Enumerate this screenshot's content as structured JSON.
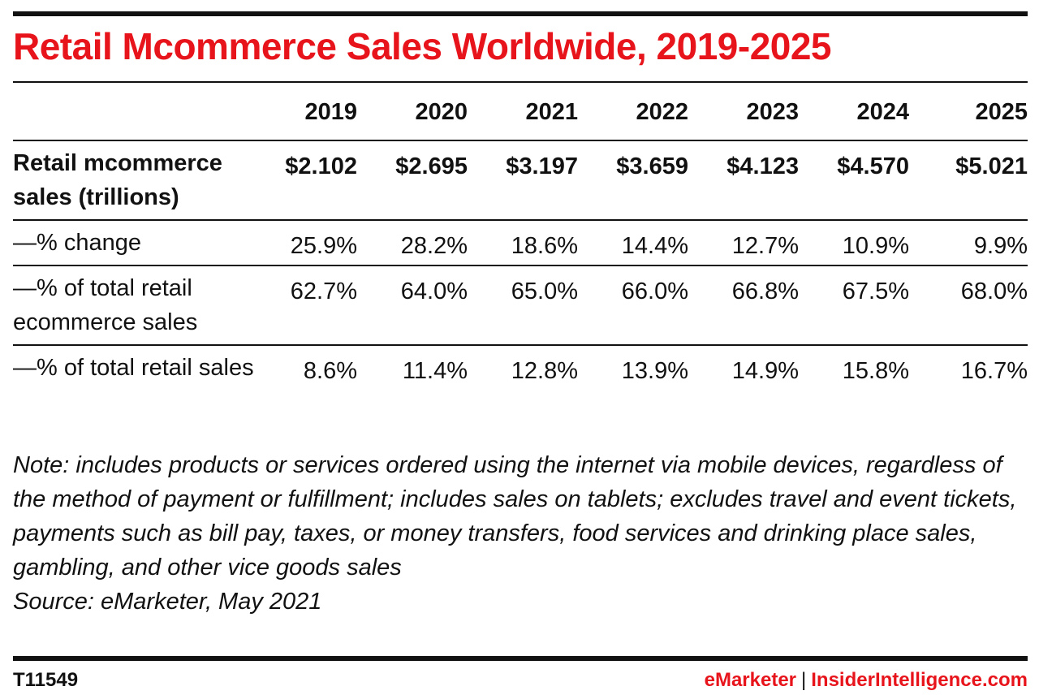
{
  "title": "Retail Mcommerce Sales Worldwide, 2019-2025",
  "chart_data": {
    "type": "table",
    "title": "Retail Mcommerce Sales Worldwide, 2019-2025",
    "columns": [
      "2019",
      "2020",
      "2021",
      "2022",
      "2023",
      "2024",
      "2025"
    ],
    "rows": [
      {
        "label": "Retail mcommerce sales (trillions)",
        "values": [
          "$2.102",
          "$2.695",
          "$3.197",
          "$3.659",
          "$4.123",
          "$4.570",
          "$5.021"
        ]
      },
      {
        "label": "—% change",
        "values": [
          "25.9%",
          "28.2%",
          "18.6%",
          "14.4%",
          "12.7%",
          "10.9%",
          "9.9%"
        ]
      },
      {
        "label": "—% of total retail ecommerce sales",
        "values": [
          "62.7%",
          "64.0%",
          "65.0%",
          "66.0%",
          "66.8%",
          "67.5%",
          "68.0%"
        ]
      },
      {
        "label": "—% of total retail sales",
        "values": [
          "8.6%",
          "11.4%",
          "12.8%",
          "13.9%",
          "14.9%",
          "15.8%",
          "16.7%"
        ]
      }
    ]
  },
  "note": "Note: includes products or services ordered using the internet via mobile devices, regardless of the method of payment or fulfillment; includes sales on tablets; excludes travel and event tickets, payments such as bill pay, taxes, or money transfers, food services and drinking place sales, gambling, and other vice goods sales",
  "source": "Source: eMarketer, May 2021",
  "footer": {
    "chart_id": "T11549",
    "brand_left": "eMarketer",
    "separator": "|",
    "brand_right": "InsiderIntelligence.com"
  },
  "colors": {
    "accent": "#e8141c",
    "text": "#111111",
    "rules": "#111111"
  }
}
